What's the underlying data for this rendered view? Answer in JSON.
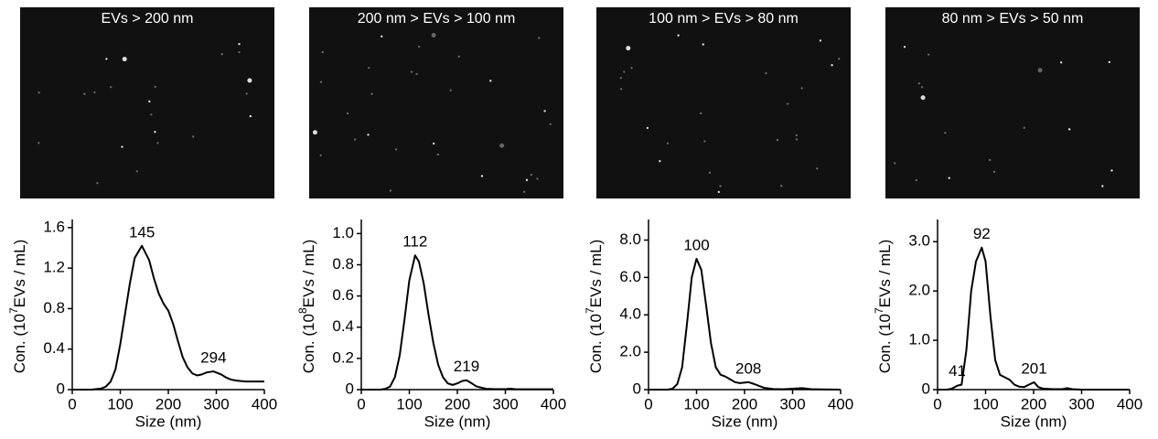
{
  "chart_data": [
    {
      "type": "line",
      "title": "EVs > 200 nm",
      "color": "#000000",
      "xlabel": "Size (nm)",
      "ylabel": {
        "prefix": "Con. (10",
        "exponent": "7",
        "suffix": "EVs / mL)"
      },
      "x": [
        0,
        20,
        40,
        60,
        70,
        80,
        90,
        100,
        110,
        120,
        130,
        145,
        160,
        170,
        180,
        190,
        200,
        210,
        220,
        230,
        240,
        250,
        260,
        270,
        280,
        294,
        310,
        320,
        330,
        340,
        360,
        380,
        400
      ],
      "values": [
        0,
        0,
        0,
        0.01,
        0.03,
        0.08,
        0.2,
        0.45,
        0.75,
        1.05,
        1.3,
        1.42,
        1.28,
        1.1,
        0.95,
        0.85,
        0.78,
        0.65,
        0.48,
        0.32,
        0.22,
        0.16,
        0.14,
        0.15,
        0.17,
        0.18,
        0.15,
        0.12,
        0.1,
        0.09,
        0.08,
        0.08,
        0.08
      ],
      "peaks": [
        145,
        294
      ],
      "xlim": [
        0,
        400
      ],
      "xticks": [
        0,
        100,
        200,
        300,
        400
      ],
      "ylim": [
        0,
        1.68
      ],
      "yticks": [
        0,
        0.4,
        0.8,
        1.2,
        1.6
      ]
    },
    {
      "type": "line",
      "title": "200 nm > EVs > 100 nm",
      "color": "#000000",
      "xlabel": "Size (nm)",
      "ylabel": {
        "prefix": "Con. (10",
        "exponent": "8",
        "suffix": "EVs / mL)"
      },
      "x": [
        0,
        20,
        40,
        50,
        60,
        70,
        80,
        90,
        100,
        112,
        120,
        130,
        140,
        150,
        160,
        170,
        180,
        190,
        200,
        210,
        219,
        230,
        240,
        260,
        280,
        300,
        310,
        320,
        340,
        360,
        400
      ],
      "values": [
        0,
        0,
        0,
        0.005,
        0.02,
        0.08,
        0.22,
        0.45,
        0.7,
        0.86,
        0.82,
        0.68,
        0.48,
        0.3,
        0.16,
        0.08,
        0.04,
        0.03,
        0.04,
        0.055,
        0.06,
        0.04,
        0.02,
        0.005,
        0.003,
        0.003,
        0.006,
        0.003,
        0.002,
        0.002,
        0.002
      ],
      "peaks": [
        112,
        219
      ],
      "xlim": [
        0,
        400
      ],
      "xticks": [
        0,
        100,
        200,
        300,
        400
      ],
      "ylim": [
        0,
        1.09
      ],
      "yticks": [
        0,
        0.2,
        0.4,
        0.6,
        0.8,
        {
          "value": 1.0,
          "label": "1.0"
        }
      ]
    },
    {
      "type": "line",
      "title": "100 nm > EVs > 80 nm",
      "color": "#000000",
      "xlabel": "Size (nm)",
      "ylabel": {
        "prefix": "Con. (10",
        "exponent": "7",
        "suffix": "EVs / mL)"
      },
      "x": [
        0,
        20,
        40,
        50,
        60,
        70,
        80,
        90,
        100,
        110,
        120,
        130,
        140,
        150,
        160,
        170,
        180,
        190,
        208,
        220,
        240,
        260,
        280,
        300,
        320,
        340,
        400
      ],
      "values": [
        0,
        0,
        0,
        0.05,
        0.3,
        1.2,
        3.5,
        6.0,
        7.0,
        6.4,
        4.5,
        2.5,
        1.2,
        0.8,
        0.7,
        0.55,
        0.4,
        0.35,
        0.4,
        0.3,
        0.1,
        0.03,
        0.02,
        0.05,
        0.08,
        0.02,
        0
      ],
      "peaks": [
        100,
        208
      ],
      "xlim": [
        0,
        400
      ],
      "xticks": [
        0,
        100,
        200,
        300,
        400
      ],
      "ylim": [
        0,
        9.1
      ],
      "yticks": [
        0,
        {
          "value": 2,
          "label": "2.0"
        },
        {
          "value": 4,
          "label": "4.0"
        },
        {
          "value": 6,
          "label": "6.0"
        },
        {
          "value": 8,
          "label": "8.0"
        }
      ]
    },
    {
      "type": "line",
      "title": "80 nm > EVs > 50 nm",
      "color": "#000000",
      "xlabel": "Size (nm)",
      "ylabel": {
        "prefix": "Con. (10",
        "exponent": "7",
        "suffix": "EVs / mL)"
      },
      "x": [
        0,
        20,
        30,
        41,
        50,
        60,
        70,
        80,
        92,
        100,
        110,
        120,
        130,
        140,
        150,
        160,
        170,
        180,
        190,
        201,
        210,
        220,
        240,
        260,
        270,
        280,
        300,
        400
      ],
      "values": [
        0,
        0,
        0.02,
        0.08,
        0.1,
        0.8,
        2.0,
        2.6,
        2.88,
        2.6,
        1.5,
        0.6,
        0.3,
        0.25,
        0.2,
        0.1,
        0.06,
        0.05,
        0.1,
        0.15,
        0.05,
        0.02,
        0.01,
        0.01,
        0.03,
        0.01,
        0,
        0
      ],
      "peaks": [
        41,
        92,
        201
      ],
      "xlim": [
        0,
        400
      ],
      "xticks": [
        0,
        100,
        200,
        300,
        400
      ],
      "ylim": [
        0,
        3.45
      ],
      "yticks": [
        0,
        {
          "value": 1,
          "label": "1.0"
        },
        {
          "value": 2,
          "label": "2.0"
        },
        {
          "value": 3,
          "label": "3.0"
        }
      ]
    }
  ]
}
